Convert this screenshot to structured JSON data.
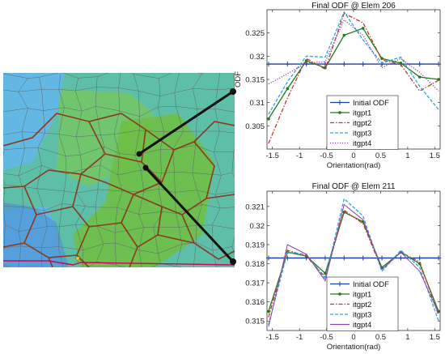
{
  "mesh_panel": {
    "colors": {
      "teal": "#5ebfa9",
      "blue": "#62b8e3",
      "green": "#6fbf45",
      "grain": "#8a3a1e",
      "mesh": "#5a6a6c"
    }
  },
  "chart_data": [
    {
      "type": "line",
      "title": "Final ODF @ Elem 206",
      "xlabel": "Orientation(rad)",
      "ylabel": "ODF",
      "xlim": [
        -1.6,
        1.6
      ],
      "ylim": [
        0.3,
        0.33
      ],
      "xticks": [
        "-1.5",
        "-1",
        "-0.5",
        "0",
        "0.5",
        "1",
        "1.5"
      ],
      "yticks": [
        "0.305",
        "0.31",
        "0.315",
        "0.32",
        "0.325"
      ],
      "ytick_values": [
        0.305,
        0.31,
        0.315,
        0.32,
        0.325
      ],
      "xtick_values": [
        -1.5,
        -1,
        -0.5,
        0,
        0.5,
        1,
        1.5
      ],
      "grid": false,
      "legend_position": "bottom-center",
      "x": [
        -1.571,
        -1.222,
        -0.873,
        -0.524,
        -0.175,
        0.175,
        0.524,
        0.873,
        1.222,
        1.571
      ],
      "series": [
        {
          "name": "Initial ODF",
          "color": "#1f3fa8",
          "style": "solid",
          "marker": "plus",
          "values": [
            0.3183,
            0.3183,
            0.3183,
            0.3183,
            0.3183,
            0.3183,
            0.3183,
            0.3183,
            0.3183,
            0.3183
          ]
        },
        {
          "name": "itgpt1",
          "color": "#1f7a1f",
          "style": "solid",
          "marker": "dot",
          "values": [
            0.3065,
            0.313,
            0.319,
            0.3175,
            0.3245,
            0.326,
            0.3195,
            0.3185,
            0.3155,
            0.315
          ]
        },
        {
          "name": "itgpt2",
          "color": "#c0392b",
          "style": "dashdot",
          "marker": "none",
          "values": [
            0.3012,
            0.311,
            0.3195,
            0.3172,
            0.3292,
            0.3272,
            0.3192,
            0.3182,
            0.3125,
            0.3148
          ]
        },
        {
          "name": "itgpt3",
          "color": "#2aa7d6",
          "style": "dashed",
          "marker": "none",
          "values": [
            0.3075,
            0.3145,
            0.32,
            0.3198,
            0.3295,
            0.3235,
            0.3185,
            0.3198,
            0.3135,
            0.3085
          ]
        },
        {
          "name": "itgpt4",
          "color": "#8e44ad",
          "style": "dotted",
          "marker": "none",
          "values": [
            0.314,
            0.3162,
            0.3185,
            0.3188,
            0.3278,
            0.3245,
            0.3175,
            0.3195,
            0.3165,
            0.3125
          ]
        }
      ]
    },
    {
      "type": "line",
      "title": "Final ODF @ Elem 211",
      "xlabel": "Orientation(rad)",
      "ylabel": "",
      "xlim": [
        -1.6,
        1.6
      ],
      "ylim": [
        0.3145,
        0.3218
      ],
      "xticks": [
        "-1.5",
        "-1",
        "-0.5",
        "0",
        "0.5",
        "1",
        "1.5"
      ],
      "yticks": [
        "0.315",
        "0.316",
        "0.317",
        "0.318",
        "0.319",
        "0.32",
        "0.321"
      ],
      "ytick_values": [
        0.315,
        0.316,
        0.317,
        0.318,
        0.319,
        0.32,
        0.321
      ],
      "xtick_values": [
        -1.5,
        -1,
        -0.5,
        0,
        0.5,
        1,
        1.5
      ],
      "grid": false,
      "legend_position": "bottom-center",
      "x": [
        -1.571,
        -1.222,
        -0.873,
        -0.524,
        -0.175,
        0.175,
        0.524,
        0.873,
        1.222,
        1.571
      ],
      "series": [
        {
          "name": "Initial ODF",
          "color": "#1f3fa8",
          "style": "solid",
          "marker": "plus",
          "values": [
            0.3183,
            0.3183,
            0.3183,
            0.3183,
            0.3183,
            0.3183,
            0.3183,
            0.3183,
            0.3183,
            0.3183
          ]
        },
        {
          "name": "itgpt1",
          "color": "#1f7a1f",
          "style": "solid",
          "marker": "dot",
          "values": [
            0.3155,
            0.3186,
            0.3184,
            0.3175,
            0.3207,
            0.3202,
            0.3178,
            0.3186,
            0.318,
            0.3155
          ]
        },
        {
          "name": "itgpt2",
          "color": "#c0392b",
          "style": "dashdot",
          "marker": "none",
          "values": [
            0.3152,
            0.3187,
            0.3184,
            0.3173,
            0.3208,
            0.3201,
            0.3177,
            0.3186,
            0.3181,
            0.3153
          ]
        },
        {
          "name": "itgpt3",
          "color": "#2aa7d6",
          "style": "dashed",
          "marker": "none",
          "values": [
            0.3148,
            0.3186,
            0.3185,
            0.3172,
            0.3214,
            0.3205,
            0.3176,
            0.3187,
            0.3178,
            0.315
          ]
        },
        {
          "name": "itgpt4",
          "color": "#8e44ad",
          "style": "solid-thin",
          "marker": "none",
          "values": [
            0.3147,
            0.319,
            0.3185,
            0.3171,
            0.3211,
            0.3203,
            0.3177,
            0.3186,
            0.3176,
            0.3154
          ]
        }
      ]
    }
  ]
}
